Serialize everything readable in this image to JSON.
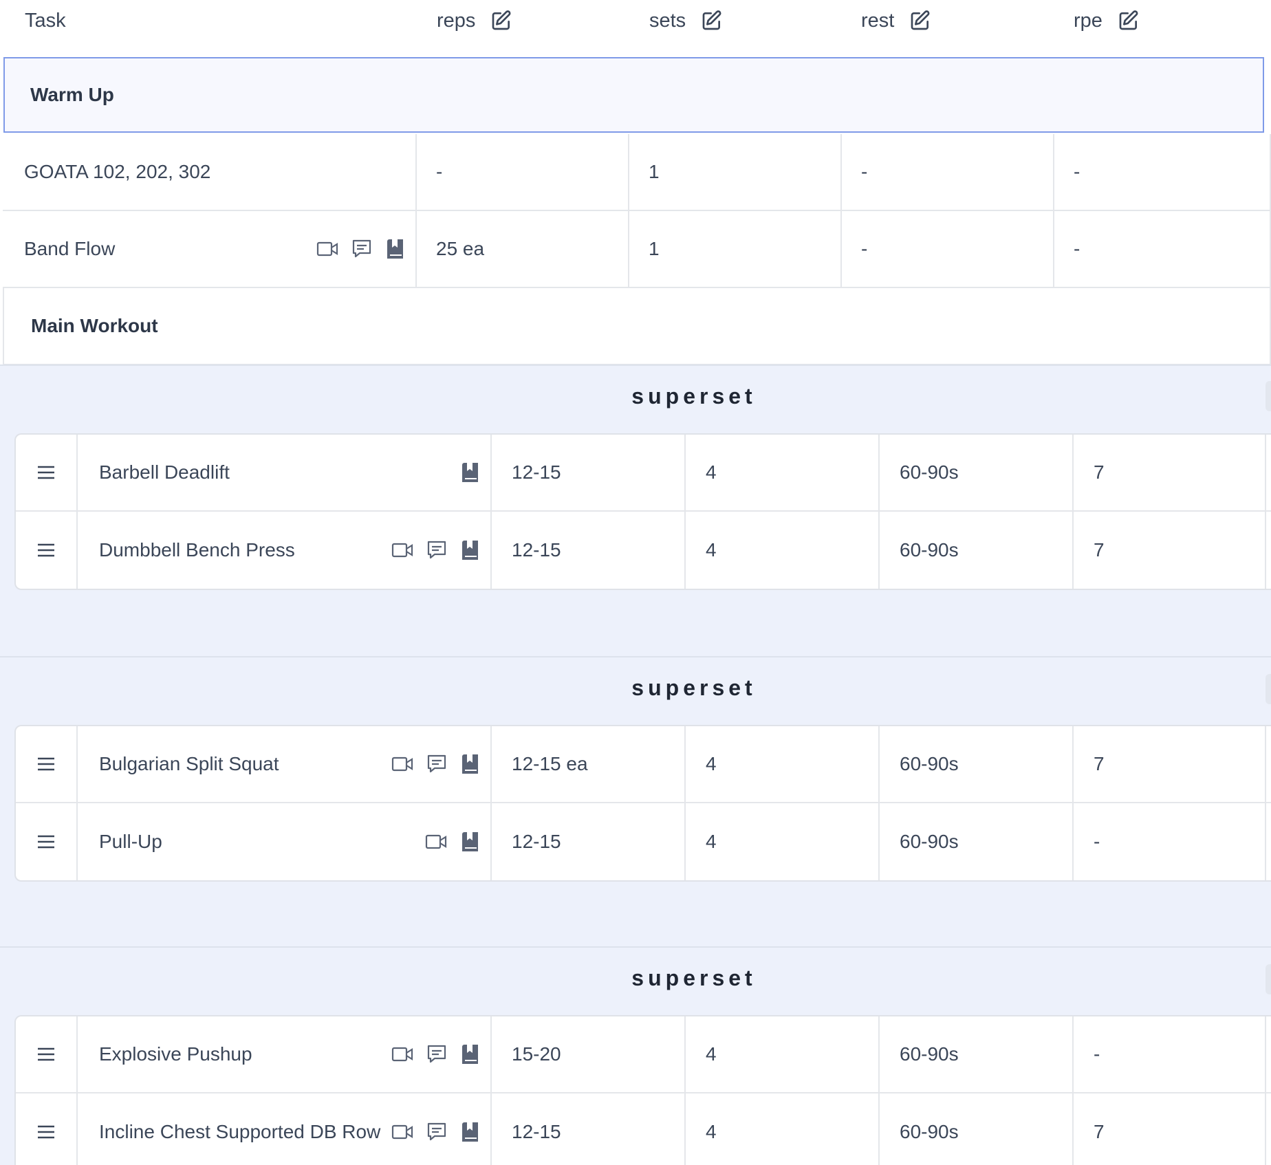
{
  "header": {
    "task": "Task",
    "reps": "reps",
    "sets": "sets",
    "rest": "rest",
    "rpe": "rpe"
  },
  "warm_up": {
    "title": "Warm Up",
    "rows": [
      {
        "task": "GOATA 102, 202, 302",
        "reps": "-",
        "sets": "1",
        "rest": "-",
        "rpe": "-",
        "icons": []
      },
      {
        "task": "Band Flow",
        "reps": "25 ea",
        "sets": "1",
        "rest": "-",
        "rpe": "-",
        "icons": [
          "video-icon",
          "comment-icon",
          "book-icon"
        ]
      }
    ]
  },
  "main_workout": {
    "title": "Main Workout",
    "supersets": [
      {
        "label": "superset",
        "rows": [
          {
            "task": "Barbell Deadlift",
            "reps": "12-15",
            "sets": "4",
            "rest": "60-90s",
            "rpe": "7",
            "icons": [
              "book-icon"
            ]
          },
          {
            "task": "Dumbbell Bench Press",
            "reps": "12-15",
            "sets": "4",
            "rest": "60-90s",
            "rpe": "7",
            "icons": [
              "video-icon",
              "comment-icon",
              "book-icon"
            ]
          }
        ]
      },
      {
        "label": "superset",
        "rows": [
          {
            "task": "Bulgarian Split Squat",
            "reps": "12-15 ea",
            "sets": "4",
            "rest": "60-90s",
            "rpe": "7",
            "icons": [
              "video-icon",
              "comment-icon",
              "book-icon"
            ]
          },
          {
            "task": "Pull-Up",
            "reps": "12-15",
            "sets": "4",
            "rest": "60-90s",
            "rpe": "-",
            "icons": [
              "video-icon",
              "book-icon"
            ]
          }
        ]
      },
      {
        "label": "superset",
        "rows": [
          {
            "task": "Explosive Pushup",
            "reps": "15-20",
            "sets": "4",
            "rest": "60-90s",
            "rpe": "-",
            "icons": [
              "video-icon",
              "comment-icon",
              "book-icon"
            ]
          },
          {
            "task": "Incline Chest Supported DB Row",
            "reps": "12-15",
            "sets": "4",
            "rest": "60-90s",
            "rpe": "7",
            "icons": [
              "video-icon",
              "comment-icon",
              "book-icon"
            ]
          }
        ]
      }
    ]
  },
  "colors": {
    "text": "#3b4658",
    "accent_border": "#7f9ae8",
    "superset_bg": "#edf1fb",
    "grid": "#e4e6ea"
  }
}
